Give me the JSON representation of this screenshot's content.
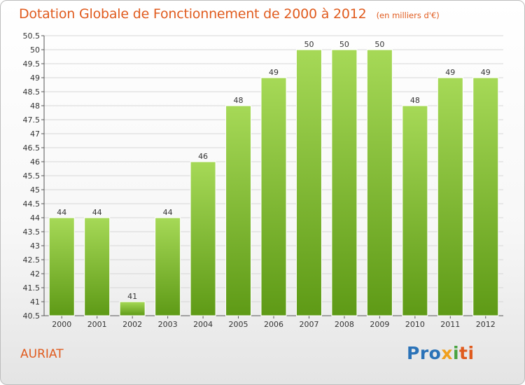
{
  "header": {
    "title": "Dotation Globale de Fonctionnement de 2000 à 2012",
    "unit": "(en milliers d'€)"
  },
  "footer": {
    "commune": "AURIAT",
    "logo": {
      "p1": "Pro",
      "p2": "x",
      "p3": "i",
      "p4": "ti"
    }
  },
  "colors": {
    "title": "#e05b1e",
    "bar_top": "#a6d957",
    "bar_bottom": "#5e9a16",
    "grid": "#d6d6d6"
  },
  "chart_data": {
    "type": "bar",
    "categories": [
      "2000",
      "2001",
      "2002",
      "2003",
      "2004",
      "2005",
      "2006",
      "2007",
      "2008",
      "2009",
      "2010",
      "2011",
      "2012"
    ],
    "values": [
      44,
      44,
      41,
      44,
      46,
      48,
      49,
      50,
      50,
      50,
      48,
      49,
      49
    ],
    "title": "Dotation Globale de Fonctionnement de 2000 à 2012",
    "ylim": [
      40.5,
      50.5
    ],
    "yticks": [
      "40.5",
      "41",
      "41.5",
      "42",
      "42.5",
      "43",
      "43.5",
      "44",
      "44.5",
      "45",
      "45.5",
      "46",
      "46.5",
      "47",
      "47.5",
      "48",
      "48.5",
      "49",
      "49.5",
      "50",
      "50.5"
    ],
    "grid": true
  }
}
